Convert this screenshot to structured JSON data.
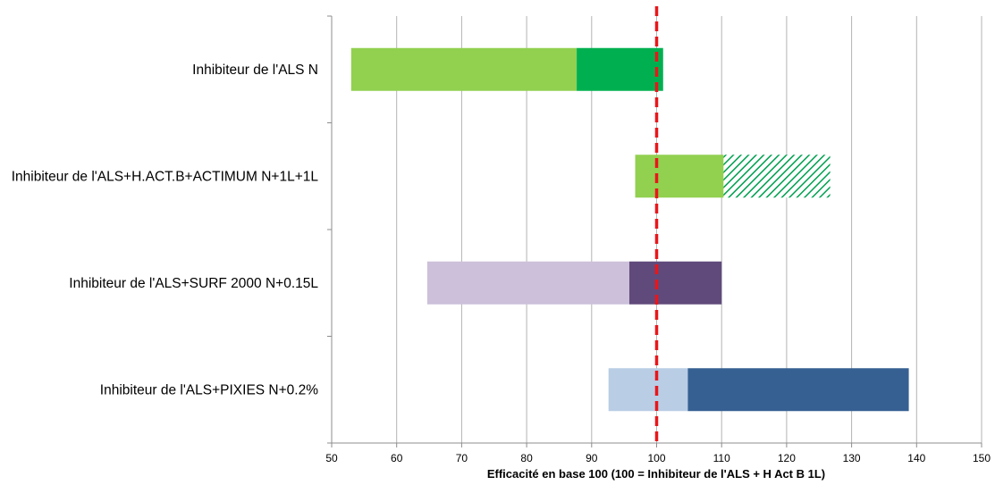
{
  "chart_data": {
    "type": "bar",
    "orientation": "horizontal",
    "stacked": true,
    "title": "",
    "xlabel": "Efficacité en base 100 (100 = Inhibiteur de l'ALS + H Act B 1L)",
    "ylabel": "",
    "xlim": [
      50,
      150
    ],
    "xticks": [
      50,
      60,
      70,
      80,
      90,
      100,
      110,
      120,
      130,
      140,
      150
    ],
    "grid": "vertical",
    "legend": "none",
    "reference_line": {
      "value": 100,
      "color": "#e8161a",
      "style": "dashed"
    },
    "categories": [
      "Inhibiteur de l'ALS N",
      "Inhibiteur de l'ALS+H.ACT.B+ACTIMUM N+1L+1L",
      "Inhibiteur de l'ALS+SURF 2000 N+0.15L",
      "Inhibiteur de l'ALS+PIXIES N+0.2%"
    ],
    "bars": [
      {
        "category": "Inhibiteur de l'ALS N",
        "min": 53,
        "mid": 87.7,
        "max": 101,
        "light_color": "#92d050",
        "dark_color": "#00b050",
        "dark_pattern": "solid"
      },
      {
        "category": "Inhibiteur de l'ALS+H.ACT.B+ACTIMUM N+1L+1L",
        "min": 96.7,
        "mid": 110.3,
        "max": 126.7,
        "light_color": "#92d050",
        "dark_color": "#00b050",
        "dark_pattern": "hatched"
      },
      {
        "category": "Inhibiteur de l'ALS+SURF 2000 N+0.15L",
        "min": 64.7,
        "mid": 95.8,
        "max": 110,
        "light_color": "#ccc0da",
        "dark_color": "#604a7b",
        "dark_pattern": "solid"
      },
      {
        "category": "Inhibiteur de l'ALS+PIXIES N+0.2%",
        "min": 92.6,
        "mid": 104.8,
        "max": 138.8,
        "light_color": "#b9cde5",
        "dark_color": "#366092",
        "dark_pattern": "solid"
      }
    ]
  }
}
